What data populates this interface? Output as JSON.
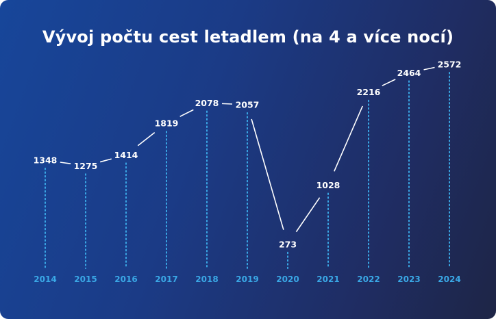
{
  "chart_data": {
    "type": "line",
    "title": "Vývoj počtu cest letadlem (na 4 a více nocí)",
    "categories": [
      "2014",
      "2015",
      "2016",
      "2017",
      "2018",
      "2019",
      "2020",
      "2021",
      "2022",
      "2023",
      "2024"
    ],
    "values": [
      1348,
      1275,
      1414,
      1819,
      2078,
      2057,
      273,
      1028,
      2216,
      2464,
      2572
    ],
    "ylim": [
      0,
      2800
    ],
    "grid": false,
    "colors": {
      "line": "#ffffff",
      "dropline": "#3aa8e6",
      "axis_labels": "#3aa8e6"
    }
  }
}
